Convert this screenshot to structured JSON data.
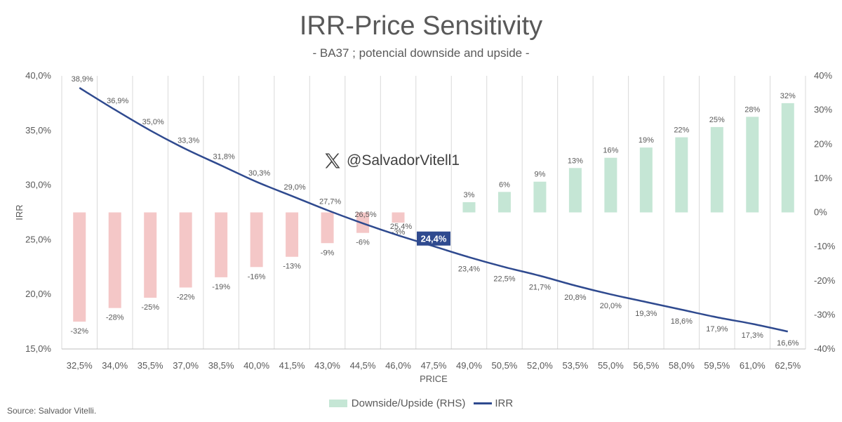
{
  "title": "IRR-Price Sensitivity",
  "subtitle": "- BA37 ; potencial downside and upside -",
  "source": "Source: Salvador Vitelli.",
  "watermark": {
    "handle": "@SalvadorVitell1",
    "icon": "x-logo-icon"
  },
  "legend": [
    {
      "label": "Downside/Upside (RHS)",
      "color": "#c5e6d5"
    },
    {
      "label": "IRR",
      "color": "#2f4a8f"
    }
  ],
  "chart_data": {
    "type": "bar+line",
    "xlabel": "PRICE",
    "ylabel": "IRR",
    "categories": [
      "32,5%",
      "34,0%",
      "35,5%",
      "37,0%",
      "38,5%",
      "40,0%",
      "41,5%",
      "43,0%",
      "44,5%",
      "46,0%",
      "47,5%",
      "49,0%",
      "50,5%",
      "52,0%",
      "53,5%",
      "55,0%",
      "56,5%",
      "58,0%",
      "59,5%",
      "61,0%",
      "62,5%"
    ],
    "y_left": {
      "min": 15,
      "max": 40,
      "ticks": [
        "15,0%",
        "20,0%",
        "25,0%",
        "30,0%",
        "35,0%",
        "40,0%"
      ]
    },
    "y_right": {
      "min": -40,
      "max": 40,
      "ticks": [
        "-40%",
        "-30%",
        "-20%",
        "-10%",
        "0%",
        "10%",
        "20%",
        "30%",
        "40%"
      ]
    },
    "series": [
      {
        "name": "Downside/Upside (RHS)",
        "type": "bar",
        "axis": "right",
        "values": [
          -32,
          -28,
          -25,
          -22,
          -19,
          -16,
          -13,
          -9,
          -6,
          -3,
          0,
          3,
          6,
          9,
          13,
          16,
          19,
          22,
          25,
          28,
          32
        ],
        "labels": [
          "-32%",
          "-28%",
          "-25%",
          "-22%",
          "-19%",
          "-16%",
          "-13%",
          "-9%",
          "-6%",
          "-3%",
          "",
          "3%",
          "6%",
          "9%",
          "13%",
          "16%",
          "19%",
          "22%",
          "25%",
          "28%",
          "32%"
        ],
        "color_negative": "#f4c7c7",
        "color_positive": "#c5e6d5"
      },
      {
        "name": "IRR",
        "type": "line",
        "axis": "left",
        "values": [
          38.9,
          36.9,
          35.0,
          33.3,
          31.8,
          30.3,
          29.0,
          27.7,
          26.5,
          25.4,
          24.4,
          23.4,
          22.5,
          21.7,
          20.8,
          20.0,
          19.3,
          18.6,
          17.9,
          17.3,
          16.6
        ],
        "labels": [
          "38,9%",
          "36,9%",
          "35,0%",
          "33,3%",
          "31,8%",
          "30,3%",
          "29,0%",
          "27,7%",
          "26,5%",
          "25,4%",
          "24,4%",
          "23,4%",
          "22,5%",
          "21,7%",
          "20,8%",
          "20,0%",
          "19,3%",
          "18,6%",
          "17,9%",
          "17,3%",
          "16,6%"
        ],
        "color": "#2f4a8f",
        "highlight_index": 10,
        "highlight_color": "#2f4a8f"
      }
    ],
    "grid": {
      "vertical": true,
      "horizontal": false
    }
  }
}
